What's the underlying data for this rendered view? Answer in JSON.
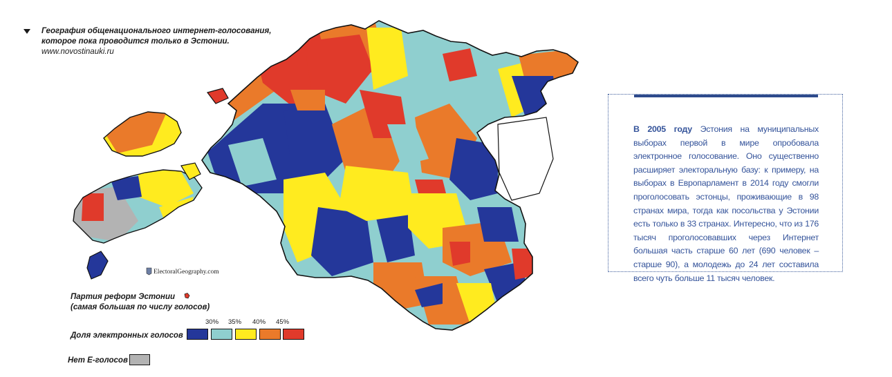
{
  "caption": {
    "line1": "География общенационального интернет-голосования,",
    "line2": "которое пока проводится только в Эстонии.",
    "source": "www.novostinauki.ru"
  },
  "map": {
    "region": "Estonia municipalities",
    "credit": "ElectoralGeography.com"
  },
  "legend": {
    "party_label_line1": "Партия реформ Эстонии",
    "party_label_line2": "(самая большая по числу голосов)",
    "party_marker_color": "#e03a2b",
    "share_label": "Доля электронных голосов",
    "thresholds": [
      "30%",
      "35%",
      "40%",
      "45%"
    ],
    "classes": [
      {
        "color": "#24379a",
        "name": "dark-blue"
      },
      {
        "color": "#8fcfcf",
        "name": "light-blue"
      },
      {
        "color": "#ffeb1f",
        "name": "yellow"
      },
      {
        "color": "#ea7a2a",
        "name": "orange"
      },
      {
        "color": "#e03a2b",
        "name": "red"
      }
    ],
    "no_e_label": "Нет Е-голосов",
    "no_e_color": "#b3b3b3"
  },
  "info": {
    "lead": "В 2005 году",
    "body": " Эстония на муниципальных выборах первой в мире опробовала электронное голосование. Оно существенно расширяет электоральную базу: к примеру, на выборах в Европарламент в 2014 году смогли проголосовать эстонцы, проживающие в 98 странах мира, тогда как посольства у Эстонии есть только в 33 странах. Интересно, что из 176 тысяч проголосовавших через Интернет большая часть старше 60 лет (690 человек – старше 90), а молодежь до 24 лет составила всего чуть больше 11 тысяч человек.",
    "accent_color": "#2d4a8c"
  }
}
